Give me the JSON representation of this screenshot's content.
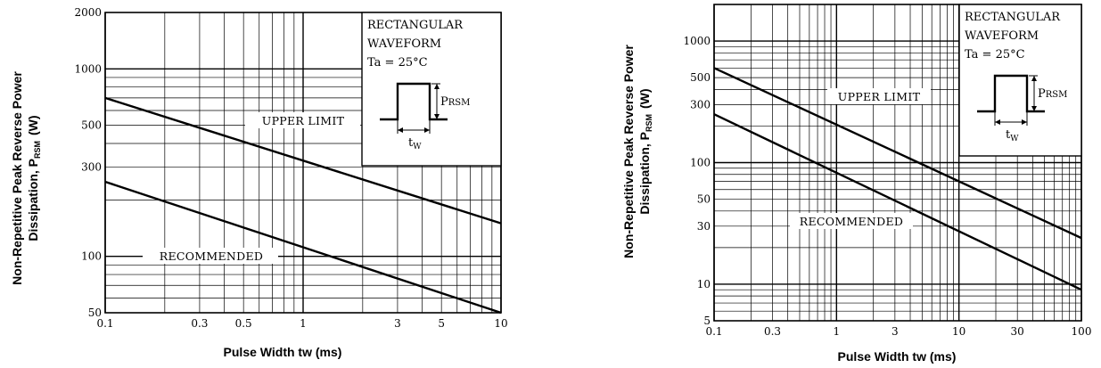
{
  "chart_data": [
    {
      "type": "line",
      "scale": "log-log",
      "ylabel_line1": "Non-Repetitive Peak Reverse Power",
      "ylabel_line2": "Dissipation, P",
      "ylabel_sub": "RSM",
      "ylabel_unit": "(W)",
      "xlabel": "Pulse Width  tw (ms)",
      "xlim": [
        0.1,
        10
      ],
      "ylim": [
        50,
        2000
      ],
      "x_ticks": [
        "0.1",
        "0.3",
        "0.5",
        "1",
        "3",
        "5",
        "10"
      ],
      "y_ticks": [
        "2000",
        "1000",
        "500",
        "300",
        "100",
        "50"
      ],
      "grid": "on",
      "box": {
        "line1": "RECTANGULAR",
        "line2": "WAVEFORM",
        "line3": "Ta = 25°C",
        "p_label": "P",
        "p_sub": "RSM",
        "tw_label": "t",
        "tw_sub": "W"
      },
      "series": [
        {
          "name": "UPPER LIMIT",
          "x": [
            0.1,
            10
          ],
          "y": [
            700,
            150
          ]
        },
        {
          "name": "RECOMMENDED",
          "x": [
            0.1,
            10
          ],
          "y": [
            250,
            50
          ]
        }
      ]
    },
    {
      "type": "line",
      "scale": "log-log",
      "ylabel_line1": "Non-Repetitive Peak Reverse Power",
      "ylabel_line2": "Dissipation, P",
      "ylabel_sub": "RSM",
      "ylabel_unit": "(W)",
      "xlabel": "Pulse Width  tw (ms)",
      "xlim": [
        0.1,
        100
      ],
      "ylim": [
        5,
        2000
      ],
      "x_ticks": [
        "0.1",
        "0.3",
        "1",
        "3",
        "10",
        "30",
        "100"
      ],
      "y_ticks": [
        "1000",
        "500",
        "300",
        "100",
        "50",
        "30",
        "10",
        "5"
      ],
      "grid": "on",
      "box": {
        "line1": "RECTANGULAR",
        "line2": "WAVEFORM",
        "line3": "Ta = 25°C",
        "p_label": "P",
        "p_sub": "RSM",
        "tw_label": "t",
        "tw_sub": "W"
      },
      "series": [
        {
          "name": "UPPER LIMIT",
          "x": [
            0.1,
            100
          ],
          "y": [
            600,
            24
          ]
        },
        {
          "name": "RECOMMENDED",
          "x": [
            0.1,
            100
          ],
          "y": [
            250,
            9
          ]
        }
      ]
    }
  ]
}
